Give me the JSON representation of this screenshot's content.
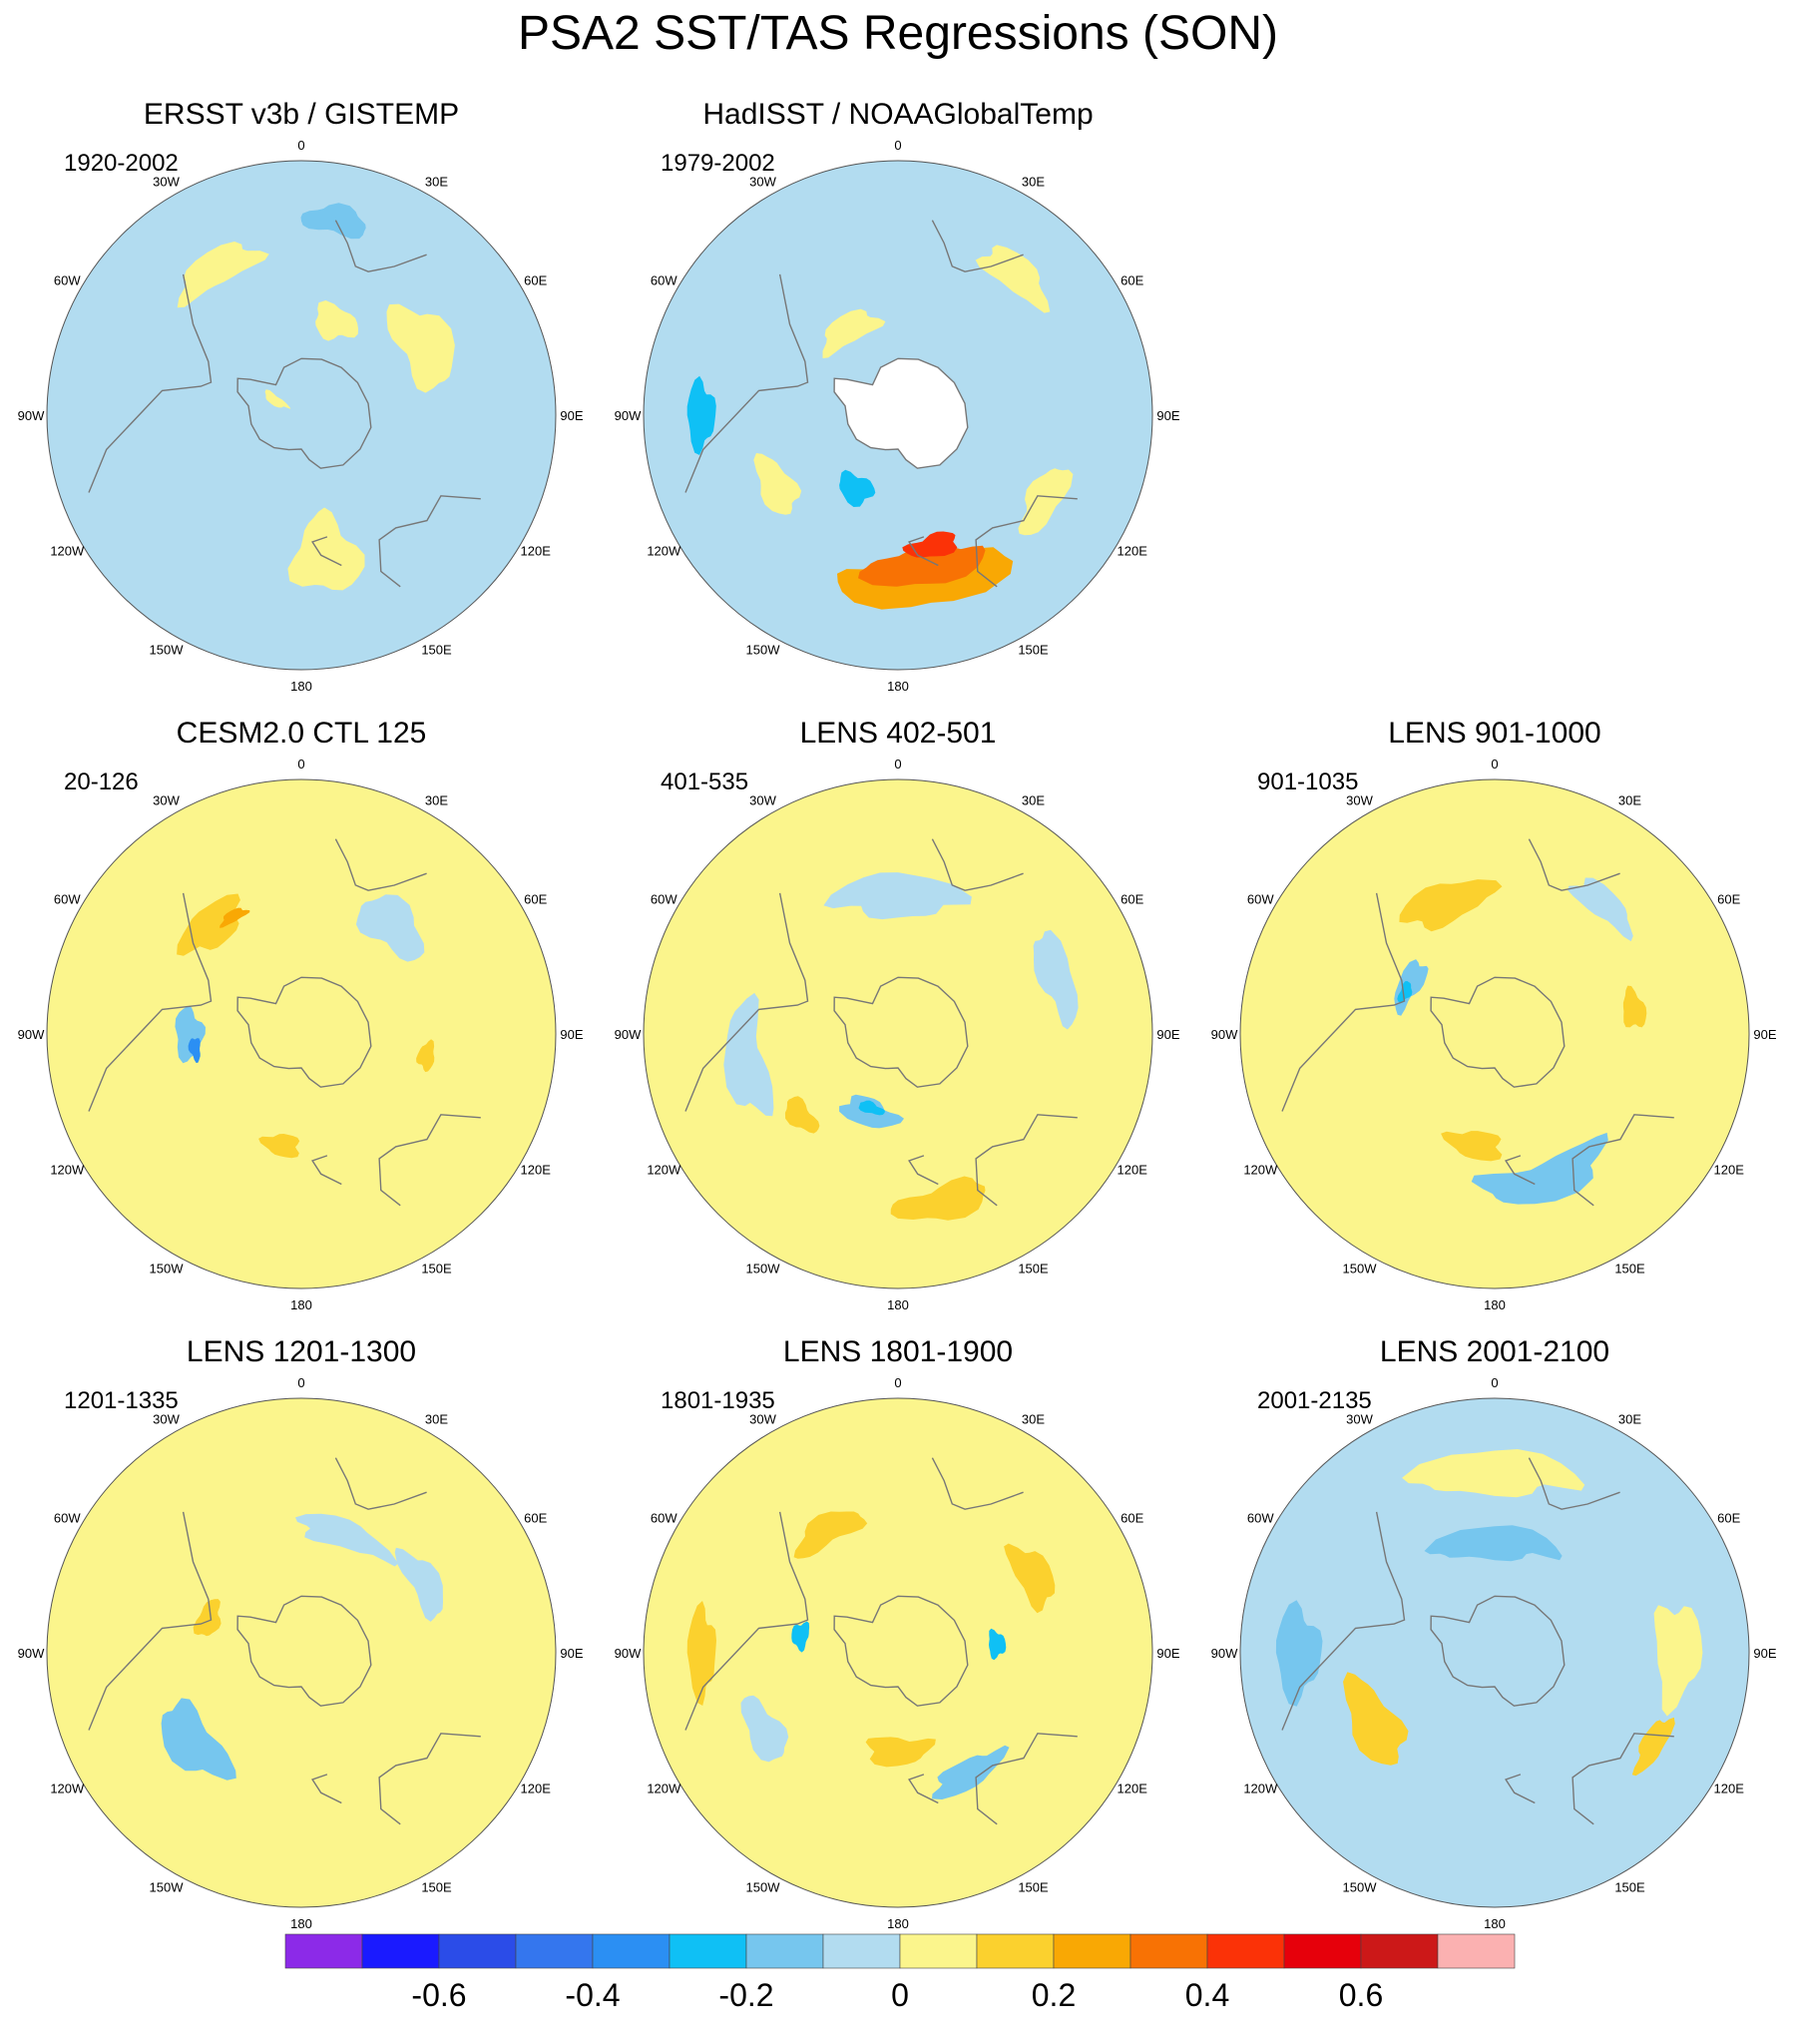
{
  "title": "PSA2 SST/TAS Regressions (SON)",
  "colors": {
    "levels": [
      "#8c2ae8",
      "#1a1aff",
      "#2b4ce8",
      "#3476ee",
      "#2b8ff3",
      "#0fc0f5",
      "#76c6ee",
      "#b2dcf0",
      "#fbf58c",
      "#fbd12e",
      "#f9a804",
      "#f87204",
      "#fb3207",
      "#e6000b",
      "#cc1818",
      "#fbb1b1"
    ],
    "land": "#ffffff",
    "coast": "#777777"
  },
  "longitude_labels": [
    "0",
    "30E",
    "60E",
    "90E",
    "120E",
    "150E",
    "180",
    "150W",
    "120W",
    "90W",
    "60W",
    "30W"
  ],
  "panels": [
    {
      "id": "ersst",
      "title": "ERSST v3b / GISTEMP",
      "period": "1920-2002",
      "base": 7,
      "blobs": [
        {
          "lon": 330,
          "lat": -30,
          "a": 10,
          "b": 6,
          "c": 8
        },
        {
          "lon": 60,
          "lat": -40,
          "a": 12,
          "b": 9,
          "c": 8
        },
        {
          "lon": 170,
          "lat": -40,
          "a": 8,
          "b": 14,
          "c": 8
        },
        {
          "lon": 20,
          "lat": -55,
          "a": 8,
          "b": 6,
          "c": 8
        },
        {
          "lon": 300,
          "lat": -80,
          "a": 6,
          "b": 5,
          "c": 8
        },
        {
          "lon": 10,
          "lat": -20,
          "a": 6,
          "b": 5,
          "c": 6
        }
      ],
      "continent_hole": false
    },
    {
      "id": "hadisst",
      "title": "HadISST / NOAAGlobalTemp",
      "period": "1979-2002",
      "base": 7,
      "blobs": [
        {
          "lon": 170,
          "lat": -30,
          "a": 18,
          "b": 10,
          "c": 10
        },
        {
          "lon": 170,
          "lat": -35,
          "a": 14,
          "b": 7,
          "c": 11
        },
        {
          "lon": 165,
          "lat": -42,
          "a": 7,
          "b": 4,
          "c": 12
        },
        {
          "lon": 240,
          "lat": -40,
          "a": 8,
          "b": 6,
          "c": 8
        },
        {
          "lon": 40,
          "lat": -25,
          "a": 8,
          "b": 6,
          "c": 8
        },
        {
          "lon": 120,
          "lat": -30,
          "a": 8,
          "b": 6,
          "c": 8
        },
        {
          "lon": 270,
          "lat": -20,
          "a": 6,
          "b": 5,
          "c": 5
        },
        {
          "lon": 210,
          "lat": -60,
          "a": 8,
          "b": 5,
          "c": 5
        },
        {
          "lon": 330,
          "lat": -55,
          "a": 12,
          "b": 5,
          "c": 8
        }
      ],
      "continent_hole": true
    },
    null,
    {
      "id": "cesm",
      "title": "CESM2.0 CTL 125",
      "period": "20-126",
      "base": 8,
      "blobs": [
        {
          "lon": 270,
          "lat": -50,
          "a": 8,
          "b": 5,
          "c": 6
        },
        {
          "lon": 262,
          "lat": -52,
          "a": 4,
          "b": 2,
          "c": 4
        },
        {
          "lon": 320,
          "lat": -40,
          "a": 9,
          "b": 7,
          "c": 9
        },
        {
          "lon": 330,
          "lat": -42,
          "a": 4,
          "b": 2,
          "c": 10
        },
        {
          "lon": 190,
          "lat": -50,
          "a": 6,
          "b": 4,
          "c": 9
        },
        {
          "lon": 100,
          "lat": -45,
          "a": 4,
          "b": 3,
          "c": 9
        },
        {
          "lon": 40,
          "lat": -40,
          "a": 10,
          "b": 8,
          "c": 7
        }
      ],
      "continent_hole": false
    },
    {
      "id": "lens402",
      "title": "LENS 402-501",
      "period": "401-535",
      "base": 8,
      "blobs": [
        {
          "lon": 200,
          "lat": -60,
          "a": 12,
          "b": 5,
          "c": 6
        },
        {
          "lon": 200,
          "lat": -62,
          "a": 6,
          "b": 2,
          "c": 5
        },
        {
          "lon": 260,
          "lat": -35,
          "a": 14,
          "b": 7,
          "c": 7
        },
        {
          "lon": 70,
          "lat": -30,
          "a": 10,
          "b": 6,
          "c": 7
        },
        {
          "lon": 165,
          "lat": -28,
          "a": 10,
          "b": 6,
          "c": 9
        },
        {
          "lon": 230,
          "lat": -45,
          "a": 6,
          "b": 4,
          "c": 9
        },
        {
          "lon": 0,
          "lat": -40,
          "a": 16,
          "b": 8,
          "c": 7
        }
      ],
      "continent_hole": false
    },
    {
      "id": "lens901",
      "title": "LENS 901-1000",
      "period": "901-1035",
      "base": 8,
      "blobs": [
        {
          "lon": 300,
          "lat": -55,
          "a": 10,
          "b": 4,
          "c": 6
        },
        {
          "lon": 295,
          "lat": -55,
          "a": 4,
          "b": 2,
          "c": 5
        },
        {
          "lon": 160,
          "lat": -35,
          "a": 16,
          "b": 7,
          "c": 6
        },
        {
          "lon": 340,
          "lat": -40,
          "a": 12,
          "b": 7,
          "c": 9
        },
        {
          "lon": 190,
          "lat": -50,
          "a": 9,
          "b": 5,
          "c": 9
        },
        {
          "lon": 80,
          "lat": -40,
          "a": 5,
          "b": 4,
          "c": 9
        },
        {
          "lon": 40,
          "lat": -30,
          "a": 8,
          "b": 5,
          "c": 7
        }
      ],
      "continent_hole": false
    },
    {
      "id": "lens1201",
      "title": "LENS 1201-1300",
      "period": "1201-1335",
      "base": 8,
      "blobs": [
        {
          "lon": 230,
          "lat": -40,
          "a": 12,
          "b": 8,
          "c": 6
        },
        {
          "lon": 20,
          "lat": -45,
          "a": 14,
          "b": 5,
          "c": 7
        },
        {
          "lon": 290,
          "lat": -55,
          "a": 7,
          "b": 4,
          "c": 9
        },
        {
          "lon": 60,
          "lat": -40,
          "a": 10,
          "b": 5,
          "c": 7
        }
      ],
      "continent_hole": false
    },
    {
      "id": "lens1801",
      "title": "LENS 1801-1900",
      "period": "1801-1935",
      "base": 8,
      "blobs": [
        {
          "lon": 180,
          "lat": -55,
          "a": 12,
          "b": 5,
          "c": 9
        },
        {
          "lon": 150,
          "lat": -40,
          "a": 10,
          "b": 5,
          "c": 6
        },
        {
          "lon": 280,
          "lat": -55,
          "a": 5,
          "b": 3,
          "c": 5
        },
        {
          "lon": 85,
          "lat": -55,
          "a": 5,
          "b": 3,
          "c": 5
        },
        {
          "lon": 240,
          "lat": -35,
          "a": 8,
          "b": 6,
          "c": 7
        },
        {
          "lon": 330,
          "lat": -40,
          "a": 10,
          "b": 5,
          "c": 9
        },
        {
          "lon": 60,
          "lat": -35,
          "a": 8,
          "b": 6,
          "c": 9
        },
        {
          "lon": 270,
          "lat": -20,
          "a": 8,
          "b": 5,
          "c": 9
        }
      ],
      "continent_hole": false
    },
    {
      "id": "lens2001",
      "title": "LENS 2001-2100",
      "period": "2001-2135",
      "base": 7,
      "blobs": [
        {
          "lon": 240,
          "lat": -40,
          "a": 12,
          "b": 8,
          "c": 9
        },
        {
          "lon": 270,
          "lat": -20,
          "a": 8,
          "b": 8,
          "c": 6
        },
        {
          "lon": 0,
          "lat": -50,
          "a": 20,
          "b": 6,
          "c": 6
        },
        {
          "lon": 90,
          "lat": -25,
          "a": 10,
          "b": 8,
          "c": 8
        },
        {
          "lon": 120,
          "lat": -25,
          "a": 6,
          "b": 4,
          "c": 9
        },
        {
          "lon": 0,
          "lat": -25,
          "a": 16,
          "b": 8,
          "c": 8
        }
      ],
      "continent_hole": false
    }
  ],
  "chart_data": {
    "type": "heatmap",
    "title": "PSA2 SST/TAS Regressions (SON)",
    "projection": "south polar stereographic",
    "panel_count": 8,
    "panels": [
      "ERSST v3b / GISTEMP (1920-2002)",
      "HadISST / NOAAGlobalTemp (1979-2002)",
      "CESM2.0 CTL 125 (20-126)",
      "LENS 402-501 (401-535)",
      "LENS 901-1000 (901-1035)",
      "LENS 1201-1300 (1201-1335)",
      "LENS 1801-1900 (1801-1935)",
      "LENS 2001-2100 (2001-2135)"
    ],
    "colorbar": {
      "levels": [
        -0.7,
        -0.6,
        -0.5,
        -0.4,
        -0.3,
        -0.2,
        -0.1,
        0,
        0.1,
        0.2,
        0.3,
        0.4,
        0.5,
        0.6,
        0.7
      ],
      "tick_labels": [
        "-0.6",
        "-0.4",
        "-0.2",
        "0",
        "0.2",
        "0.4",
        "0.6"
      ],
      "tick_values": [
        -0.6,
        -0.4,
        -0.2,
        0,
        0.2,
        0.4,
        0.6
      ]
    }
  }
}
